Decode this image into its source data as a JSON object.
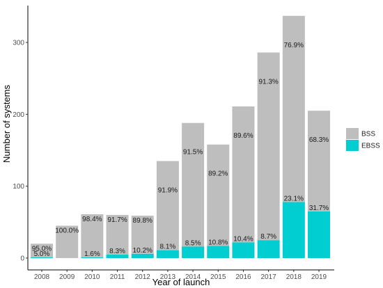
{
  "chart_data": {
    "type": "bar",
    "stacked": true,
    "categories": [
      "2008",
      "2009",
      "2010",
      "2011",
      "2012",
      "2013",
      "2014",
      "2015",
      "2016",
      "2017",
      "2018",
      "2019"
    ],
    "series": [
      {
        "name": "EBSS",
        "color": "#00CED1",
        "values": [
          1,
          0,
          1,
          5,
          6,
          11,
          16,
          17,
          22,
          25,
          78,
          65
        ],
        "labels": [
          "5.0%",
          "",
          "1.6%",
          "8.3%",
          "10.2%",
          "8.1%",
          "8.5%",
          "10.8%",
          "10.4%",
          "8.7%",
          "23.1%",
          "31.7%"
        ]
      },
      {
        "name": "BSS",
        "color": "#BEBEBE",
        "values": [
          19,
          45,
          60,
          55,
          53,
          124,
          172,
          141,
          189,
          261,
          259,
          140
        ],
        "labels": [
          "95.0%",
          "100.0%",
          "98.4%",
          "91.7%",
          "89.8%",
          "91.9%",
          "91.5%",
          "89.2%",
          "89.6%",
          "91.3%",
          "76.9%",
          "68.3%"
        ]
      }
    ],
    "xlabel": "Year of launch",
    "ylabel": "Number of systems",
    "ylim": [
      0,
      350
    ],
    "yticks": [
      0,
      100,
      200,
      300
    ],
    "grid": false,
    "legend": {
      "position": "right",
      "entries": [
        "BSS",
        "EBSS"
      ]
    }
  }
}
